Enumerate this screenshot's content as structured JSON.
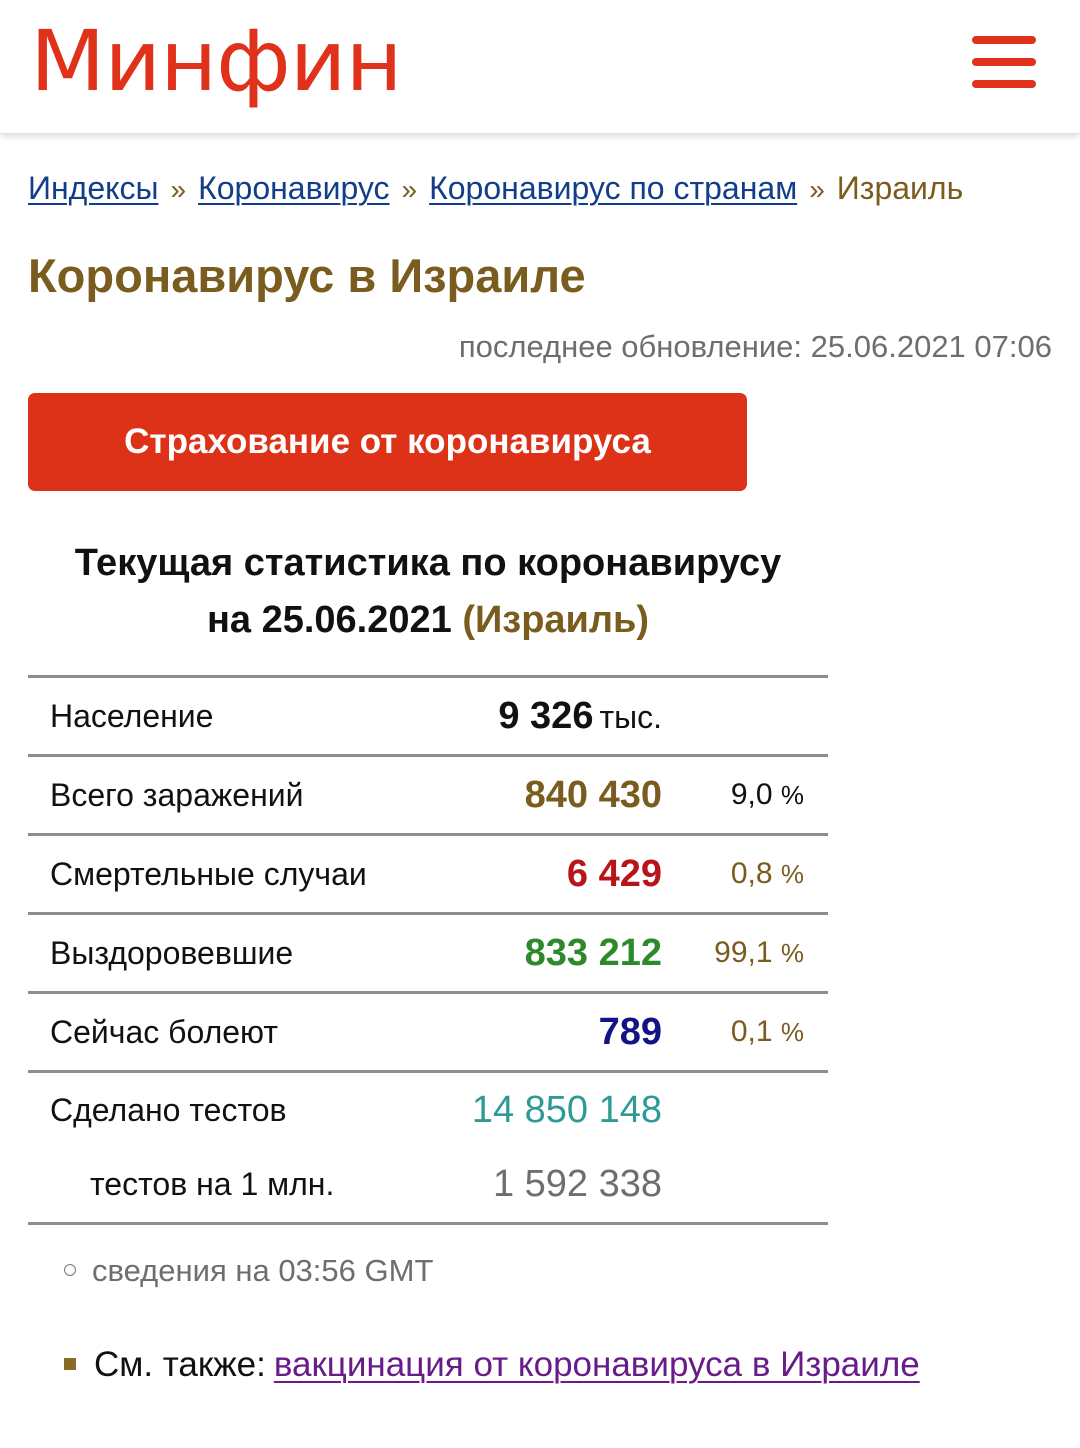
{
  "header": {
    "logo": "Минфин",
    "menu_icon": "hamburger-menu-icon"
  },
  "breadcrumb": {
    "items": [
      {
        "label": "Индексы",
        "link": true
      },
      {
        "label": "Коронавирус",
        "link": true
      },
      {
        "label": "Коронавирус по странам",
        "link": true
      },
      {
        "label": "Израиль",
        "link": false
      }
    ],
    "separator": "»"
  },
  "page": {
    "title": "Коронавирус в Израиле",
    "last_updated": "последнее обновление: 25.06.2021 07:06",
    "insurance_button": "Страхование от коронавируса"
  },
  "stats": {
    "title_line1": "Текущая статистика по коронавирусу",
    "title_line2_prefix": "на 25.06.2021",
    "title_country": "(Израиль)",
    "rows": [
      {
        "label": "Население",
        "value": "9 326",
        "unit": "тыс.",
        "pct": ""
      },
      {
        "label": "Всего заражений",
        "value": "840 430",
        "pct": "9,0",
        "pct_sign": "%"
      },
      {
        "label": "Смертельные случаи",
        "value": "6 429",
        "pct": "0,8",
        "pct_sign": "%"
      },
      {
        "label": "Выздоровевшие",
        "value": "833 212",
        "pct": "99,1",
        "pct_sign": "%"
      },
      {
        "label": "Сейчас болеют",
        "value": "789",
        "pct": "0,1",
        "pct_sign": "%"
      },
      {
        "label": "Сделано тестов",
        "value": "14 850 148",
        "pct": ""
      },
      {
        "label": "тестов на 1 млн.",
        "value": "1 592 338",
        "pct": ""
      }
    ],
    "source_note": "сведения на 03:56 GMT"
  },
  "see_also": {
    "prefix": "См. также:",
    "link_label": "вакцинация от коронавируса в Израиле"
  },
  "colors": {
    "brand_red": "#e0321b",
    "button_red": "#dd3218",
    "title_brown": "#7a5c1e",
    "link_blue": "#123d8a",
    "link_visited_purple": "#6a1b8a",
    "deaths_red": "#b8151b",
    "recovered_green": "#2d8a2b",
    "active_navy": "#111584",
    "tests_teal": "#2d9a96"
  }
}
